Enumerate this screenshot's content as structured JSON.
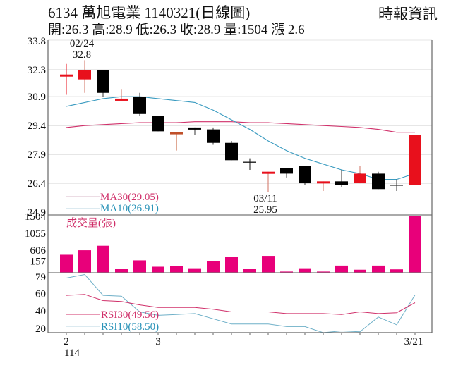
{
  "header": {
    "title": "6134  萬旭電業 1140321(日線圖)",
    "subtitle": "開:26.3 高:28.9 低:26.3 收:28.9 量:1504 漲 2.6",
    "brand": "時報資訊"
  },
  "colors": {
    "up": "#e8101c",
    "down": "#000000",
    "ma30": "#d0306a",
    "ma10": "#3a9bc0",
    "volume": "#e8007a",
    "rsi30": "#d0306a",
    "rsi10": "#6fb0c8",
    "grid": "#dddddd"
  },
  "chart_data": [
    {
      "type": "candlestick",
      "title": "6134 萬旭電業 日線圖",
      "yticks": [
        33.8,
        32.3,
        30.9,
        29.4,
        27.9,
        26.4,
        24.9
      ],
      "ylim": [
        24.9,
        33.8
      ],
      "annotations": [
        {
          "label": "02/24",
          "value": "32.8",
          "note": "high"
        },
        {
          "label": "03/11",
          "value": "25.95",
          "note": "low"
        }
      ],
      "legend": [
        {
          "name": "MA30",
          "value": "29.05"
        },
        {
          "name": "MA10",
          "value": "26.91"
        }
      ],
      "candles": [
        {
          "o": 32.0,
          "h": 32.6,
          "l": 31.0,
          "c": 32.0
        },
        {
          "o": 31.8,
          "h": 32.8,
          "l": 31.1,
          "c": 32.3
        },
        {
          "o": 32.3,
          "h": 32.3,
          "l": 30.9,
          "c": 31.1
        },
        {
          "o": 30.7,
          "h": 31.3,
          "l": 30.7,
          "c": 30.8
        },
        {
          "o": 30.9,
          "h": 31.1,
          "l": 29.9,
          "c": 30.0
        },
        {
          "o": 29.9,
          "h": 29.9,
          "l": 29.1,
          "c": 29.1
        },
        {
          "o": 29.0,
          "h": 29.0,
          "l": 28.1,
          "c": 29.0
        },
        {
          "o": 29.3,
          "h": 29.3,
          "l": 28.9,
          "c": 29.2
        },
        {
          "o": 29.2,
          "h": 29.3,
          "l": 28.4,
          "c": 28.5
        },
        {
          "o": 28.5,
          "h": 28.6,
          "l": 27.6,
          "c": 27.6
        },
        {
          "o": 27.5,
          "h": 27.7,
          "l": 27.1,
          "c": 27.5
        },
        {
          "o": 26.9,
          "h": 27.0,
          "l": 25.95,
          "c": 27.0
        },
        {
          "o": 27.2,
          "h": 27.2,
          "l": 26.7,
          "c": 26.9
        },
        {
          "o": 27.3,
          "h": 27.3,
          "l": 26.3,
          "c": 26.4
        },
        {
          "o": 26.4,
          "h": 26.5,
          "l": 26.0,
          "c": 26.5
        },
        {
          "o": 26.5,
          "h": 27.1,
          "l": 26.2,
          "c": 26.3
        },
        {
          "o": 26.4,
          "h": 27.3,
          "l": 26.4,
          "c": 26.9
        },
        {
          "o": 26.9,
          "h": 27.0,
          "l": 26.1,
          "c": 26.1
        },
        {
          "o": 26.3,
          "h": 26.6,
          "l": 26.0,
          "c": 26.3
        },
        {
          "o": 26.3,
          "h": 28.9,
          "l": 26.3,
          "c": 28.9
        }
      ],
      "ma10": [
        30.4,
        30.6,
        30.8,
        30.9,
        30.9,
        30.8,
        30.7,
        30.6,
        30.2,
        29.7,
        29.2,
        28.6,
        28.1,
        27.7,
        27.4,
        27.1,
        26.9,
        26.6,
        26.6,
        26.91
      ],
      "ma30": [
        29.3,
        29.4,
        29.45,
        29.5,
        29.55,
        29.55,
        29.55,
        29.6,
        29.6,
        29.6,
        29.55,
        29.55,
        29.5,
        29.45,
        29.4,
        29.35,
        29.3,
        29.2,
        29.05,
        29.05
      ]
    },
    {
      "type": "bar",
      "title": "成交量(張)",
      "yticks": [
        1504,
        1055,
        606,
        157
      ],
      "ylim": [
        0,
        1504
      ],
      "values": [
        480,
        600,
        720,
        110,
        330,
        160,
        170,
        120,
        310,
        420,
        110,
        450,
        30,
        120,
        30,
        190,
        80,
        190,
        90,
        1504
      ]
    },
    {
      "type": "line",
      "title": "RSI",
      "yticks": [
        79,
        60,
        40,
        20
      ],
      "legend": [
        {
          "name": "RSI30",
          "value": "49.56"
        },
        {
          "name": "RSI10",
          "value": "58.50"
        }
      ],
      "series": [
        {
          "name": "RSI30",
          "values": [
            58,
            59,
            52,
            51,
            47,
            44,
            44,
            44,
            42,
            39,
            39,
            39,
            37,
            37,
            37,
            36,
            39,
            37,
            38,
            49.56
          ]
        },
        {
          "name": "RSI10",
          "values": [
            78,
            82,
            58,
            57,
            39,
            35,
            36,
            37,
            31,
            25,
            25,
            25,
            22,
            22,
            15,
            17,
            16,
            33,
            24,
            58.5
          ]
        }
      ]
    }
  ],
  "xaxis": {
    "labels": [
      {
        "text": "2",
        "index": 0
      },
      {
        "text": "3",
        "index": 5
      },
      {
        "text": "3/21",
        "index": 19
      }
    ],
    "year": "114"
  },
  "price_panel": {
    "ma30_legend": "MA30(29.05)",
    "ma10_legend": "MA10(26.91)",
    "high_date": "02/24",
    "high_value": "32.8",
    "low_date": "03/11",
    "low_value": "25.95"
  },
  "volume_panel": {
    "title": "成交量(張)"
  },
  "rsi_panel": {
    "rsi30_legend": "RSI30(49.56)",
    "rsi10_legend": "RSI10(58.50)"
  }
}
